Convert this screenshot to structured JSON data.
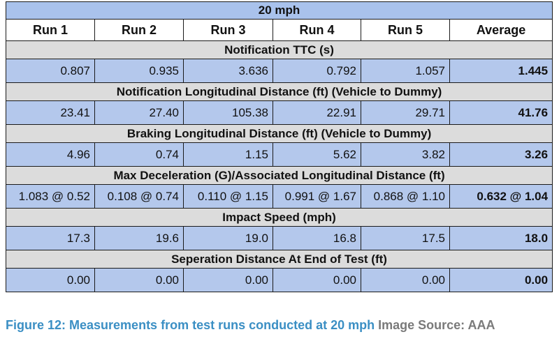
{
  "table": {
    "title": "20 mph",
    "columns": [
      "Run 1",
      "Run 2",
      "Run 3",
      "Run 4",
      "Run 5",
      "Average"
    ],
    "sections": [
      {
        "label": "Notification TTC (s)",
        "values": [
          "0.807",
          "0.935",
          "3.636",
          "0.792",
          "1.057",
          "1.445"
        ]
      },
      {
        "label": "Notification Longitudinal Distance (ft) (Vehicle to Dummy)",
        "values": [
          "23.41",
          "27.40",
          "105.38",
          "22.91",
          "29.71",
          "41.76"
        ]
      },
      {
        "label": "Braking Longitudinal Distance (ft) (Vehicle to Dummy)",
        "values": [
          "4.96",
          "0.74",
          "1.15",
          "5.62",
          "3.82",
          "3.26"
        ]
      },
      {
        "label": "Max Deceleration (G)/Associated Longitudinal Distance (ft)",
        "values": [
          "1.083 @ 0.52",
          "0.108 @ 0.74",
          "0.110 @ 1.15",
          "0.991 @ 1.67",
          "0.868 @ 1.10",
          "0.632 @ 1.04"
        ]
      },
      {
        "label": "Impact Speed (mph)",
        "values": [
          "17.3",
          "19.6",
          "19.0",
          "16.8",
          "17.5",
          "18.0"
        ]
      },
      {
        "label": "Seperation Distance At End of Test (ft)",
        "values": [
          "0.00",
          "0.00",
          "0.00",
          "0.00",
          "0.00",
          "0.00"
        ]
      }
    ]
  },
  "caption": {
    "figure": "Figure 12: Measurements from test runs conducted at 20 mph",
    "source": "Image Source: AAA"
  }
}
